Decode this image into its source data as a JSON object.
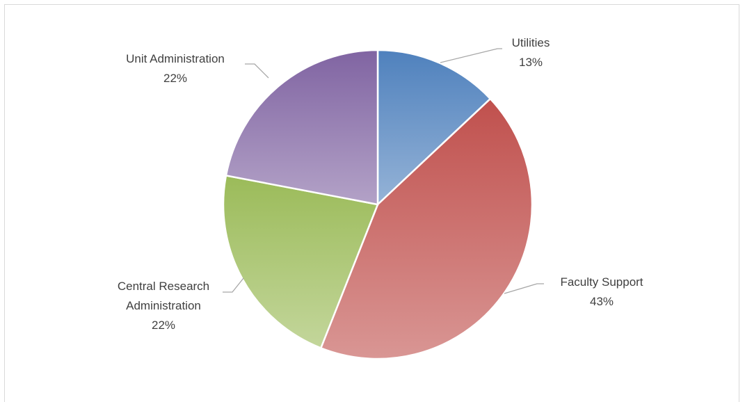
{
  "chart_data": {
    "type": "pie",
    "categories": [
      "Utilities",
      "Faculty Support",
      "Central Research Administration",
      "Unit Administration"
    ],
    "values": [
      13,
      43,
      22,
      22
    ],
    "value_labels": [
      "13%",
      "43%",
      "22%",
      "22%"
    ],
    "colors": [
      "#4f81bd",
      "#c0504d",
      "#9bbb59",
      "#8064a2"
    ]
  }
}
